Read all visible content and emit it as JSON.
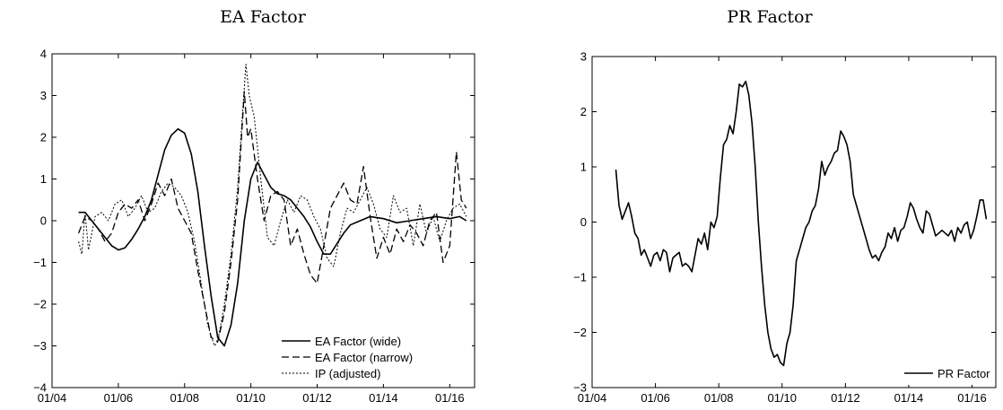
{
  "chart_data": [
    {
      "type": "line",
      "title": "EA Factor",
      "xlabel": "",
      "ylabel": "",
      "x_ticks": [
        "01/04",
        "01/06",
        "01/08",
        "01/10",
        "01/12",
        "01/14",
        "01/16"
      ],
      "x_tick_years": [
        2004,
        2006,
        2008,
        2010,
        2012,
        2014,
        2016
      ],
      "xlim": [
        2004.0,
        2016.75
      ],
      "ylim": [
        -4,
        4
      ],
      "y_ticks": [
        -4,
        -3,
        -2,
        -1,
        0,
        1,
        2,
        3,
        4
      ],
      "grid": false,
      "legend_position": "bottom-right",
      "series": [
        {
          "name": "EA Factor (wide)",
          "style": "solid",
          "x": [
            2004.8,
            2005.0,
            2005.2,
            2005.4,
            2005.6,
            2005.8,
            2006.0,
            2006.2,
            2006.4,
            2006.6,
            2006.8,
            2007.0,
            2007.2,
            2007.4,
            2007.6,
            2007.8,
            2008.0,
            2008.2,
            2008.4,
            2008.6,
            2008.8,
            2009.0,
            2009.2,
            2009.4,
            2009.6,
            2009.8,
            2010.0,
            2010.2,
            2010.4,
            2010.6,
            2010.8,
            2011.0,
            2011.2,
            2011.4,
            2011.6,
            2011.8,
            2012.0,
            2012.2,
            2012.4,
            2012.6,
            2012.8,
            2013.0,
            2013.3,
            2013.6,
            2014.0,
            2014.4,
            2014.8,
            2015.2,
            2015.6,
            2016.0,
            2016.3,
            2016.5
          ],
          "values": [
            0.2,
            0.2,
            0.0,
            -0.2,
            -0.4,
            -0.6,
            -0.7,
            -0.65,
            -0.45,
            -0.2,
            0.1,
            0.5,
            1.1,
            1.7,
            2.05,
            2.2,
            2.1,
            1.6,
            0.7,
            -0.6,
            -1.8,
            -2.8,
            -3.0,
            -2.5,
            -1.5,
            0.0,
            1.0,
            1.4,
            1.1,
            0.8,
            0.65,
            0.6,
            0.5,
            0.3,
            0.1,
            -0.15,
            -0.5,
            -0.8,
            -0.8,
            -0.55,
            -0.3,
            -0.1,
            0.0,
            0.1,
            0.05,
            -0.05,
            0.0,
            0.05,
            0.1,
            0.05,
            0.1,
            0.0
          ]
        },
        {
          "name": "EA Factor (narrow)",
          "style": "dashed",
          "x": [
            2004.8,
            2005.0,
            2005.2,
            2005.4,
            2005.6,
            2005.8,
            2006.0,
            2006.2,
            2006.4,
            2006.6,
            2006.8,
            2007.0,
            2007.2,
            2007.4,
            2007.6,
            2007.8,
            2008.0,
            2008.2,
            2008.4,
            2008.6,
            2008.8,
            2009.0,
            2009.2,
            2009.4,
            2009.6,
            2009.7,
            2009.8,
            2009.9,
            2010.0,
            2010.2,
            2010.4,
            2010.6,
            2010.8,
            2011.0,
            2011.2,
            2011.4,
            2011.6,
            2011.8,
            2012.0,
            2012.2,
            2012.4,
            2012.6,
            2012.8,
            2013.0,
            2013.2,
            2013.4,
            2013.6,
            2013.8,
            2014.0,
            2014.2,
            2014.4,
            2014.6,
            2014.8,
            2015.0,
            2015.2,
            2015.4,
            2015.6,
            2015.8,
            2016.0,
            2016.2,
            2016.35,
            2016.5
          ],
          "values": [
            -0.3,
            0.1,
            0.0,
            -0.2,
            -0.5,
            -0.3,
            0.2,
            0.4,
            0.3,
            0.5,
            0.0,
            0.4,
            0.9,
            0.6,
            1.0,
            0.3,
            0.0,
            -0.3,
            -1.2,
            -2.0,
            -2.8,
            -2.9,
            -2.2,
            -1.0,
            0.5,
            1.8,
            3.1,
            2.0,
            2.2,
            1.0,
            0.0,
            0.6,
            0.7,
            0.5,
            -0.6,
            -0.2,
            -0.8,
            -1.3,
            -1.5,
            -0.6,
            0.3,
            0.6,
            0.9,
            0.5,
            0.4,
            1.3,
            0.1,
            -0.9,
            -0.4,
            -0.8,
            -0.2,
            -0.5,
            -0.1,
            -0.3,
            -0.6,
            0.0,
            0.2,
            -1.0,
            -0.6,
            1.65,
            0.5,
            0.3
          ]
        },
        {
          "name": "IP (adjusted)",
          "style": "dotted",
          "x": [
            2004.8,
            2004.9,
            2005.0,
            2005.1,
            2005.3,
            2005.5,
            2005.7,
            2005.9,
            2006.1,
            2006.3,
            2006.5,
            2006.7,
            2006.9,
            2007.1,
            2007.3,
            2007.5,
            2007.7,
            2007.9,
            2008.1,
            2008.3,
            2008.5,
            2008.7,
            2008.9,
            2009.0,
            2009.2,
            2009.4,
            2009.6,
            2009.75,
            2009.85,
            2009.95,
            2010.1,
            2010.3,
            2010.5,
            2010.7,
            2010.9,
            2011.1,
            2011.3,
            2011.5,
            2011.7,
            2011.9,
            2012.1,
            2012.3,
            2012.5,
            2012.7,
            2012.9,
            2013.1,
            2013.3,
            2013.5,
            2013.7,
            2013.9,
            2014.1,
            2014.3,
            2014.5,
            2014.7,
            2014.9,
            2015.1,
            2015.3,
            2015.5,
            2015.7,
            2015.9,
            2016.1,
            2016.3,
            2016.5
          ],
          "values": [
            -0.5,
            -0.8,
            0.2,
            -0.7,
            0.1,
            0.2,
            0.0,
            0.4,
            0.5,
            0.1,
            0.3,
            0.6,
            0.2,
            0.3,
            0.7,
            0.9,
            0.8,
            0.6,
            0.2,
            -0.5,
            -1.5,
            -2.5,
            -3.0,
            -2.9,
            -2.0,
            -0.8,
            0.8,
            2.6,
            3.75,
            3.0,
            2.5,
            1.0,
            -0.4,
            -0.6,
            0.0,
            0.5,
            0.2,
            0.6,
            0.5,
            0.1,
            -0.2,
            -0.9,
            -1.1,
            -0.3,
            0.3,
            0.2,
            0.5,
            0.8,
            0.4,
            -0.2,
            -0.4,
            0.6,
            0.2,
            0.3,
            -0.6,
            0.4,
            -0.3,
            0.1,
            -0.5,
            0.0,
            0.3,
            0.4,
            0.1
          ]
        }
      ]
    },
    {
      "type": "line",
      "title": "PR Factor",
      "xlabel": "",
      "ylabel": "",
      "x_ticks": [
        "01/04",
        "01/06",
        "01/08",
        "01/10",
        "01/12",
        "01/14",
        "01/16"
      ],
      "x_tick_years": [
        2004,
        2006,
        2008,
        2010,
        2012,
        2014,
        2016
      ],
      "xlim": [
        2004.0,
        2016.75
      ],
      "ylim": [
        -3,
        3
      ],
      "y_ticks": [
        -3,
        -2,
        -1,
        0,
        1,
        2,
        3
      ],
      "grid": false,
      "legend_position": "bottom-right",
      "series": [
        {
          "name": "PR Factor",
          "style": "solid",
          "x": [
            2004.75,
            2004.85,
            2004.95,
            2005.05,
            2005.15,
            2005.25,
            2005.35,
            2005.45,
            2005.55,
            2005.65,
            2005.75,
            2005.85,
            2005.95,
            2006.05,
            2006.15,
            2006.25,
            2006.35,
            2006.45,
            2006.55,
            2006.65,
            2006.75,
            2006.85,
            2006.95,
            2007.05,
            2007.15,
            2007.25,
            2007.35,
            2007.45,
            2007.55,
            2007.65,
            2007.75,
            2007.85,
            2007.95,
            2008.05,
            2008.15,
            2008.25,
            2008.35,
            2008.45,
            2008.55,
            2008.65,
            2008.75,
            2008.85,
            2008.95,
            2009.05,
            2009.15,
            2009.25,
            2009.35,
            2009.45,
            2009.55,
            2009.65,
            2009.75,
            2009.85,
            2009.95,
            2010.05,
            2010.15,
            2010.25,
            2010.35,
            2010.45,
            2010.55,
            2010.65,
            2010.75,
            2010.85,
            2010.95,
            2011.05,
            2011.15,
            2011.25,
            2011.35,
            2011.45,
            2011.55,
            2011.65,
            2011.75,
            2011.85,
            2011.95,
            2012.05,
            2012.15,
            2012.25,
            2012.35,
            2012.45,
            2012.55,
            2012.65,
            2012.75,
            2012.85,
            2012.95,
            2013.05,
            2013.15,
            2013.25,
            2013.35,
            2013.45,
            2013.55,
            2013.65,
            2013.75,
            2013.85,
            2013.95,
            2014.05,
            2014.15,
            2014.25,
            2014.35,
            2014.45,
            2014.55,
            2014.65,
            2014.75,
            2014.85,
            2014.95,
            2015.05,
            2015.15,
            2015.25,
            2015.35,
            2015.45,
            2015.55,
            2015.65,
            2015.75,
            2015.85,
            2015.95,
            2016.05,
            2016.15,
            2016.25,
            2016.35,
            2016.45
          ],
          "values": [
            0.95,
            0.3,
            0.05,
            0.2,
            0.35,
            0.1,
            -0.2,
            -0.3,
            -0.6,
            -0.5,
            -0.65,
            -0.8,
            -0.6,
            -0.55,
            -0.7,
            -0.5,
            -0.55,
            -0.9,
            -0.65,
            -0.6,
            -0.55,
            -0.8,
            -0.75,
            -0.8,
            -0.9,
            -0.6,
            -0.3,
            -0.4,
            -0.2,
            -0.5,
            0.0,
            -0.1,
            0.1,
            0.8,
            1.4,
            1.5,
            1.75,
            1.6,
            2.0,
            2.5,
            2.45,
            2.55,
            2.3,
            1.8,
            1.0,
            0.0,
            -0.8,
            -1.5,
            -2.0,
            -2.3,
            -2.45,
            -2.4,
            -2.55,
            -2.6,
            -2.2,
            -2.0,
            -1.5,
            -0.7,
            -0.5,
            -0.3,
            -0.1,
            0.0,
            0.2,
            0.3,
            0.6,
            1.1,
            0.85,
            1.0,
            1.1,
            1.25,
            1.3,
            1.65,
            1.55,
            1.4,
            1.1,
            0.5,
            0.3,
            0.1,
            -0.1,
            -0.3,
            -0.5,
            -0.65,
            -0.6,
            -0.7,
            -0.55,
            -0.45,
            -0.2,
            -0.3,
            -0.1,
            -0.35,
            -0.15,
            -0.1,
            0.1,
            0.35,
            0.25,
            0.05,
            -0.1,
            -0.2,
            0.2,
            0.15,
            -0.05,
            -0.25,
            -0.2,
            -0.15,
            -0.2,
            -0.25,
            -0.15,
            -0.35,
            -0.1,
            -0.2,
            -0.05,
            0.0,
            -0.3,
            -0.15,
            0.1,
            0.4,
            0.4,
            0.05
          ]
        }
      ]
    }
  ]
}
